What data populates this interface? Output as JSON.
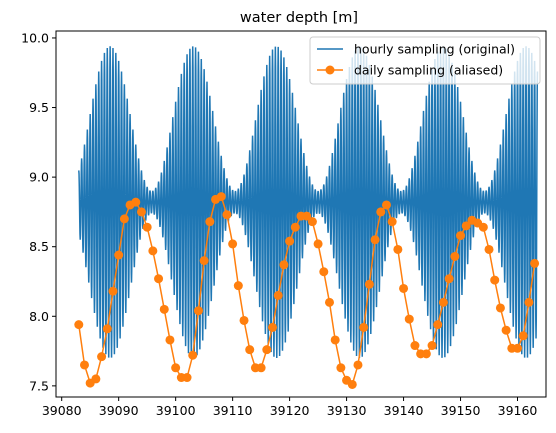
{
  "chart_data": {
    "type": "line",
    "title": "water depth [m]",
    "xlabel": "",
    "ylabel": "",
    "xlim": [
      39079,
      39165
    ],
    "ylim": [
      7.42,
      10.05
    ],
    "xticks": [
      39080,
      39090,
      39100,
      39110,
      39120,
      39130,
      39140,
      39150,
      39160
    ],
    "yticks": [
      7.5,
      8.0,
      8.5,
      9.0,
      9.5,
      10.0
    ],
    "ytick_labels": [
      "7.5",
      "8.0",
      "8.5",
      "9.0",
      "9.5",
      "10.0"
    ],
    "grid": false,
    "legend_position": "top-right",
    "series": [
      {
        "name": "hourly sampling (original)",
        "color": "#1f77b4",
        "marker": "none",
        "sampling": "hourly",
        "x_start": 39083.0,
        "x_end": 39163.5,
        "mean": 8.82,
        "semidiurnal_period_days": 0.5,
        "amplitude_range": [
          0.08,
          1.12
        ],
        "envelope_period_days": 14.6
      },
      {
        "name": "daily sampling (aliased)",
        "color": "#ff7f0e",
        "marker": "circle",
        "x": [
          39083,
          39084,
          39085,
          39086,
          39087,
          39088,
          39089,
          39090,
          39091,
          39092,
          39093,
          39094,
          39095,
          39096,
          39097,
          39098,
          39099,
          39100,
          39101,
          39102,
          39103,
          39104,
          39105,
          39106,
          39107,
          39108,
          39109,
          39110,
          39111,
          39112,
          39113,
          39114,
          39115,
          39116,
          39117,
          39118,
          39119,
          39120,
          39121,
          39122,
          39123,
          39124,
          39125,
          39126,
          39127,
          39128,
          39129,
          39130,
          39131,
          39132,
          39133,
          39134,
          39135,
          39136,
          39137,
          39138,
          39139,
          39140,
          39141,
          39142,
          39143,
          39144,
          39145,
          39146,
          39147,
          39148,
          39149,
          39150,
          39151,
          39152,
          39153,
          39154,
          39155,
          39156,
          39157,
          39158,
          39159,
          39160,
          39161,
          39162,
          39163
        ],
        "y": [
          7.94,
          7.65,
          7.52,
          7.55,
          7.71,
          7.91,
          8.18,
          8.44,
          8.7,
          8.8,
          8.82,
          8.75,
          8.64,
          8.47,
          8.27,
          8.05,
          7.83,
          7.63,
          7.56,
          7.56,
          7.72,
          8.04,
          8.4,
          8.68,
          8.84,
          8.86,
          8.73,
          8.52,
          8.22,
          7.97,
          7.76,
          7.63,
          7.63,
          7.76,
          7.92,
          8.15,
          8.37,
          8.54,
          8.64,
          8.72,
          8.72,
          8.68,
          8.52,
          8.32,
          8.1,
          7.83,
          7.63,
          7.54,
          7.51,
          7.65,
          7.92,
          8.23,
          8.55,
          8.75,
          8.8,
          8.68,
          8.48,
          8.2,
          7.98,
          7.79,
          7.73,
          7.73,
          7.79,
          7.94,
          8.1,
          8.27,
          8.43,
          8.58,
          8.65,
          8.69,
          8.67,
          8.64,
          8.48,
          8.26,
          8.06,
          7.9,
          7.77,
          7.77,
          7.86,
          8.1,
          8.38
        ]
      }
    ]
  }
}
